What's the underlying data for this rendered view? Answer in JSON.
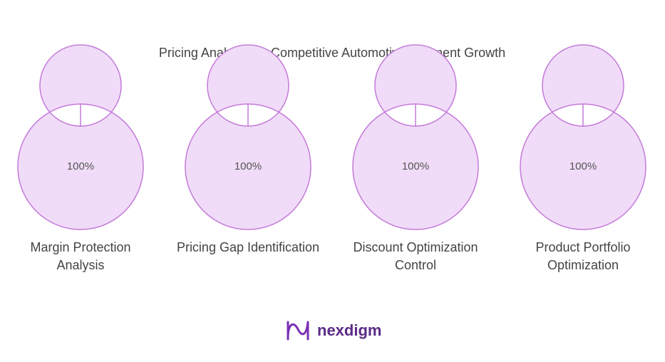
{
  "chart_data": {
    "type": "donut",
    "title": "Pricing Analysis for Competitive Automotive Segment Growth",
    "categories": [
      "Margin Protection Analysis",
      "Pricing Gap Identification",
      "Discount Optimization Control",
      "Product Portfolio Optimization"
    ],
    "values": [
      100,
      100,
      100,
      100
    ],
    "value_labels": [
      "100%",
      "100%",
      "100%",
      "100%"
    ],
    "max": 100,
    "color": "#f0dcf8",
    "edge_color": "#c47ad9"
  },
  "logo": "nexdigm"
}
